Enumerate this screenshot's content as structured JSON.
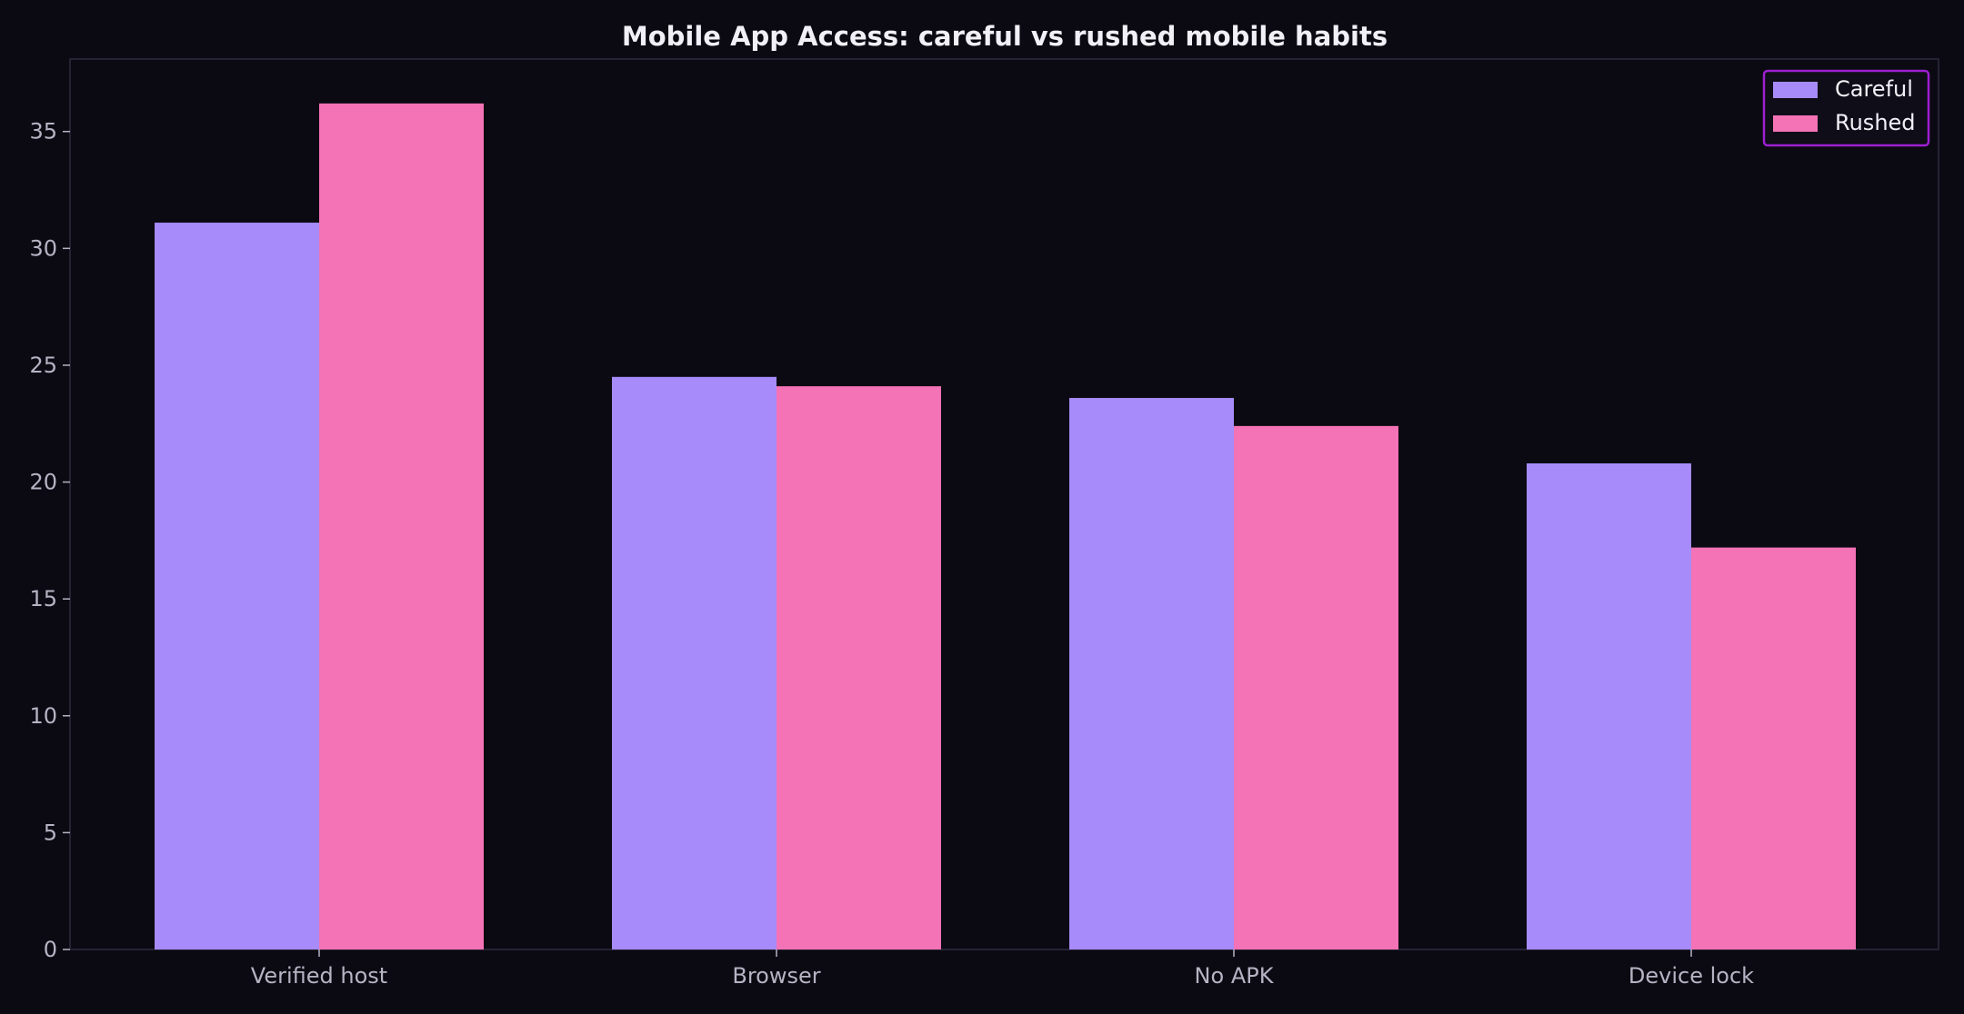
{
  "chart_data": {
    "type": "bar",
    "title": "Mobile App Access: careful vs rushed mobile habits",
    "xlabel": "",
    "ylabel": "",
    "categories": [
      "Verified host",
      "Browser",
      "No APK",
      "Device lock"
    ],
    "series": [
      {
        "name": "Careful",
        "color": "#a78bfa",
        "values": [
          31.1,
          24.5,
          23.6,
          20.8
        ]
      },
      {
        "name": "Rushed",
        "color": "#f472b6",
        "values": [
          36.2,
          24.1,
          22.4,
          17.2
        ]
      }
    ],
    "ylim": [
      0,
      38.1
    ],
    "yticks": [
      0,
      5,
      10,
      15,
      20,
      25,
      30,
      35
    ],
    "grid": false,
    "legend_position": "top-right",
    "colors": {
      "background": "#0b0a12",
      "axes_edge": "#2e2a40",
      "legend_edge": "#9d1fd1",
      "legend_face": "#0f0d18",
      "tick_text": "#b7b3c4",
      "title_text": "#f2f0f7"
    }
  }
}
